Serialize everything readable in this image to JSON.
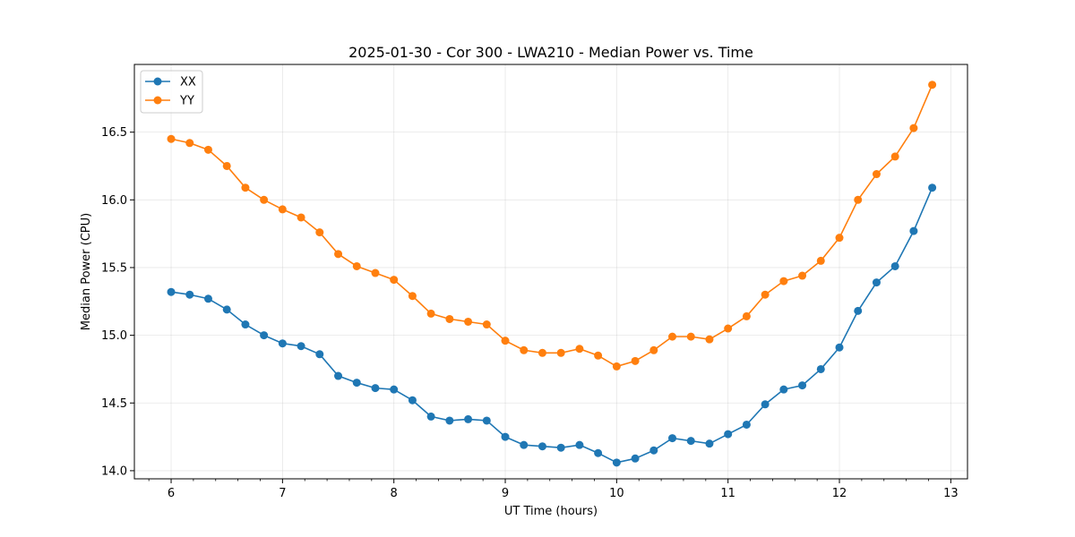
{
  "chart_data": {
    "type": "line",
    "title": "2025-01-30 - Cor 300 - LWA210 - Median Power vs. Time",
    "xlabel": "UT Time (hours)",
    "ylabel": "Median Power (CPU)",
    "xlim": [
      5.67,
      13.15
    ],
    "ylim": [
      13.94,
      17.0
    ],
    "xticks": [
      6,
      7,
      8,
      9,
      10,
      11,
      12,
      13
    ],
    "xtick_labels": [
      "6",
      "7",
      "8",
      "9",
      "10",
      "11",
      "12",
      "13"
    ],
    "yticks": [
      14.0,
      14.5,
      15.0,
      15.5,
      16.0,
      16.5
    ],
    "ytick_labels": [
      "14.0",
      "14.5",
      "15.0",
      "15.5",
      "16.0",
      "16.5"
    ],
    "grid": true,
    "legend_position": "top-left",
    "x": [
      6.0,
      6.1667,
      6.3333,
      6.5,
      6.6667,
      6.8333,
      7.0,
      7.1667,
      7.3333,
      7.5,
      7.6667,
      7.8333,
      8.0,
      8.1667,
      8.3333,
      8.5,
      8.6667,
      8.8333,
      9.0,
      9.1667,
      9.3333,
      9.5,
      9.6667,
      9.8333,
      10.0,
      10.1667,
      10.3333,
      10.5,
      10.6667,
      10.8333,
      11.0,
      11.1667,
      11.3333,
      11.5,
      11.6667,
      11.8333,
      12.0,
      12.1667,
      12.3333,
      12.5,
      12.6667,
      12.8333
    ],
    "series": [
      {
        "name": "XX",
        "color": "#1f77b4",
        "values": [
          15.32,
          15.3,
          15.27,
          15.19,
          15.08,
          15.0,
          14.94,
          14.92,
          14.86,
          14.7,
          14.65,
          14.61,
          14.6,
          14.52,
          14.4,
          14.37,
          14.38,
          14.37,
          14.25,
          14.19,
          14.18,
          14.17,
          14.19,
          14.13,
          14.06,
          14.09,
          14.15,
          14.24,
          14.22,
          14.2,
          14.27,
          14.34,
          14.49,
          14.6,
          14.63,
          14.75,
          14.91,
          15.18,
          15.39,
          15.51,
          15.77,
          16.09
        ]
      },
      {
        "name": "YY",
        "color": "#ff7f0e",
        "values": [
          16.45,
          16.42,
          16.37,
          16.25,
          16.09,
          16.0,
          15.93,
          15.87,
          15.76,
          15.6,
          15.51,
          15.46,
          15.41,
          15.29,
          15.16,
          15.12,
          15.1,
          15.08,
          14.96,
          14.89,
          14.87,
          14.87,
          14.9,
          14.85,
          14.77,
          14.81,
          14.89,
          14.99,
          14.99,
          14.97,
          15.05,
          15.14,
          15.3,
          15.4,
          15.44,
          15.55,
          15.72,
          16.0,
          16.19,
          16.32,
          16.53,
          16.85
        ]
      }
    ]
  }
}
